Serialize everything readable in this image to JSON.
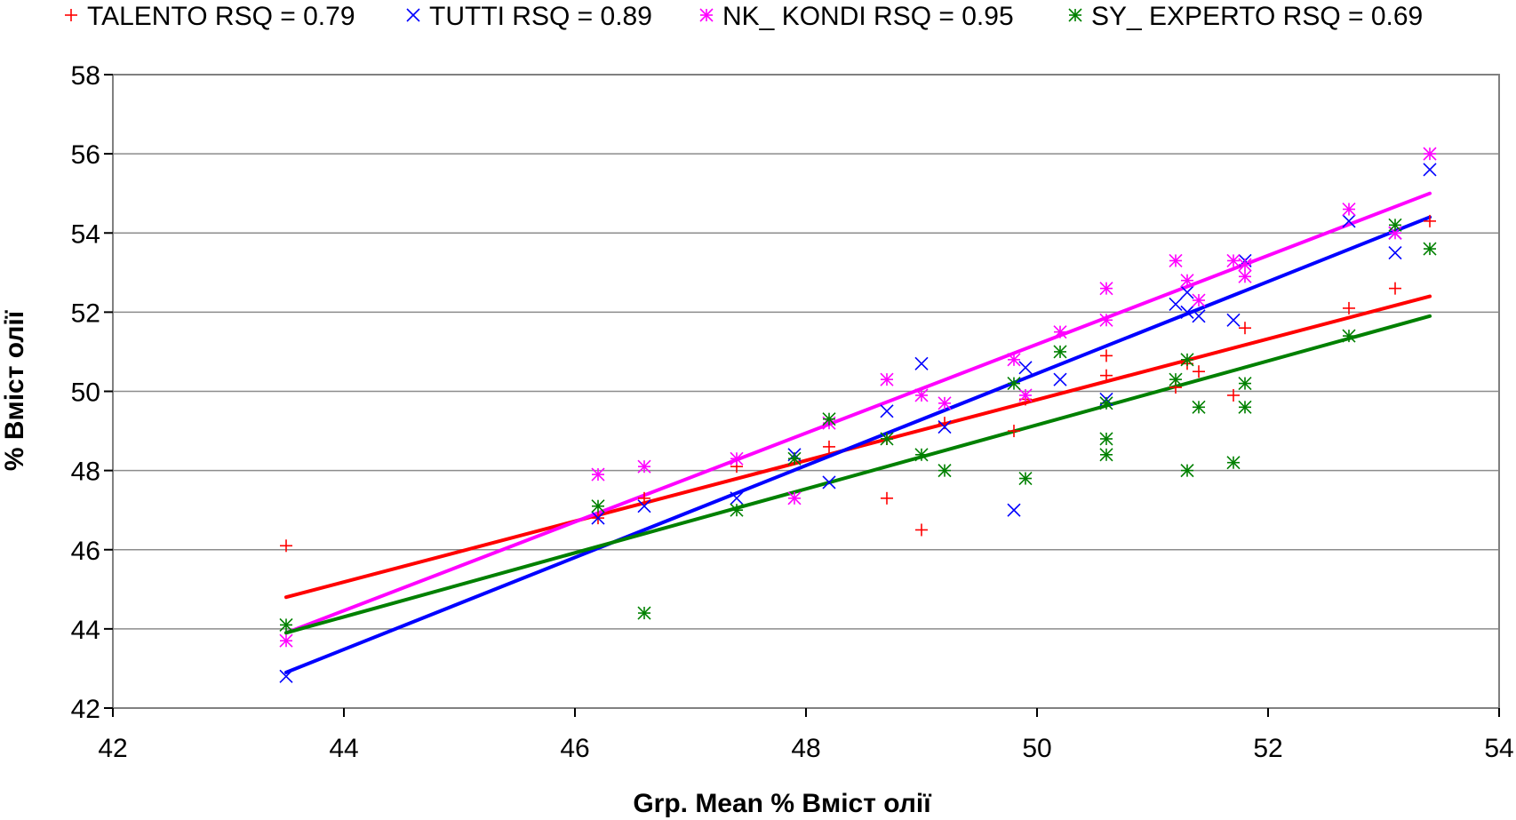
{
  "chart_data": {
    "type": "scatter",
    "title": "",
    "xlabel": "Grp. Mean % Вміст олії",
    "ylabel": "% Вміст олії",
    "xlim": [
      42,
      54
    ],
    "ylim": [
      42,
      58
    ],
    "xticks": [
      "42",
      "44",
      "46",
      "48",
      "50",
      "52",
      "54"
    ],
    "yticks": [
      "42",
      "44",
      "46",
      "48",
      "50",
      "52",
      "54",
      "56",
      "58"
    ],
    "grid": "horizontal",
    "legend_position": "top",
    "series": [
      {
        "name": "TALENTO",
        "legend_label": "TALENTO RSQ = 0.79",
        "marker": "plus",
        "color": "#ff0000",
        "points": [
          [
            43.5,
            46.1
          ],
          [
            46.2,
            46.8
          ],
          [
            46.6,
            47.3
          ],
          [
            47.4,
            48.1
          ],
          [
            47.9,
            48.3
          ],
          [
            48.2,
            48.6
          ],
          [
            48.7,
            47.3
          ],
          [
            48.7,
            48.8
          ],
          [
            49.0,
            46.5
          ],
          [
            49.2,
            49.2
          ],
          [
            49.8,
            49.0
          ],
          [
            49.9,
            49.8
          ],
          [
            50.6,
            50.9
          ],
          [
            50.6,
            50.4
          ],
          [
            51.2,
            50.1
          ],
          [
            51.3,
            50.7
          ],
          [
            51.4,
            50.5
          ],
          [
            51.7,
            49.9
          ],
          [
            51.8,
            51.6
          ],
          [
            52.7,
            52.1
          ],
          [
            53.1,
            52.6
          ],
          [
            53.4,
            54.3
          ]
        ],
        "fit": [
          [
            43.5,
            44.8
          ],
          [
            53.4,
            52.4
          ]
        ]
      },
      {
        "name": "TUTTI",
        "legend_label": "TUTTI RSQ = 0.89",
        "marker": "x",
        "color": "#0000ff",
        "points": [
          [
            43.5,
            42.8
          ],
          [
            46.2,
            46.8
          ],
          [
            46.6,
            47.1
          ],
          [
            47.4,
            47.3
          ],
          [
            47.9,
            48.4
          ],
          [
            48.2,
            47.7
          ],
          [
            48.7,
            49.5
          ],
          [
            49.0,
            50.7
          ],
          [
            49.2,
            49.1
          ],
          [
            49.8,
            47.0
          ],
          [
            49.9,
            50.6
          ],
          [
            50.2,
            50.3
          ],
          [
            50.6,
            49.8
          ],
          [
            51.2,
            52.2
          ],
          [
            51.3,
            52.0
          ],
          [
            51.3,
            52.5
          ],
          [
            51.4,
            51.9
          ],
          [
            51.7,
            51.8
          ],
          [
            51.8,
            53.3
          ],
          [
            52.7,
            54.3
          ],
          [
            53.1,
            53.5
          ],
          [
            53.1,
            54.0
          ],
          [
            53.4,
            55.6
          ]
        ],
        "fit": [
          [
            43.5,
            42.9
          ],
          [
            53.4,
            54.4
          ]
        ]
      },
      {
        "name": "NK_ KONDI",
        "legend_label": "NK_ KONDI RSQ = 0.95",
        "marker": "asterisk",
        "color": "#ff00ff",
        "points": [
          [
            43.5,
            43.7
          ],
          [
            46.2,
            47.9
          ],
          [
            46.6,
            48.1
          ],
          [
            47.4,
            48.3
          ],
          [
            47.9,
            47.3
          ],
          [
            48.2,
            49.2
          ],
          [
            48.7,
            50.3
          ],
          [
            49.0,
            49.9
          ],
          [
            49.2,
            49.7
          ],
          [
            49.8,
            50.8
          ],
          [
            49.9,
            49.9
          ],
          [
            50.2,
            51.5
          ],
          [
            50.6,
            52.6
          ],
          [
            50.6,
            51.8
          ],
          [
            51.2,
            53.3
          ],
          [
            51.3,
            52.8
          ],
          [
            51.4,
            52.3
          ],
          [
            51.7,
            53.3
          ],
          [
            51.8,
            52.9
          ],
          [
            51.8,
            53.2
          ],
          [
            52.7,
            54.6
          ],
          [
            53.1,
            54.0
          ],
          [
            53.4,
            56.0
          ]
        ],
        "fit": [
          [
            43.5,
            43.9
          ],
          [
            53.4,
            55.0
          ]
        ]
      },
      {
        "name": "SY_ EXPERTO",
        "legend_label": "SY_ EXPERTO RSQ = 0.69",
        "marker": "asterisk",
        "color": "#008000",
        "points": [
          [
            43.5,
            44.1
          ],
          [
            46.2,
            47.1
          ],
          [
            46.6,
            44.4
          ],
          [
            47.4,
            47.0
          ],
          [
            47.9,
            48.3
          ],
          [
            48.2,
            49.3
          ],
          [
            48.7,
            48.8
          ],
          [
            49.0,
            48.4
          ],
          [
            49.2,
            48.0
          ],
          [
            49.8,
            50.2
          ],
          [
            49.9,
            47.8
          ],
          [
            50.2,
            51.0
          ],
          [
            50.6,
            48.8
          ],
          [
            50.6,
            48.4
          ],
          [
            50.6,
            49.7
          ],
          [
            51.2,
            50.3
          ],
          [
            51.3,
            48.0
          ],
          [
            51.3,
            50.8
          ],
          [
            51.4,
            49.6
          ],
          [
            51.7,
            48.2
          ],
          [
            51.8,
            49.6
          ],
          [
            51.8,
            50.2
          ],
          [
            52.7,
            51.4
          ],
          [
            53.1,
            54.2
          ],
          [
            53.4,
            53.6
          ]
        ],
        "fit": [
          [
            43.5,
            43.9
          ],
          [
            53.4,
            51.9
          ]
        ]
      }
    ]
  }
}
